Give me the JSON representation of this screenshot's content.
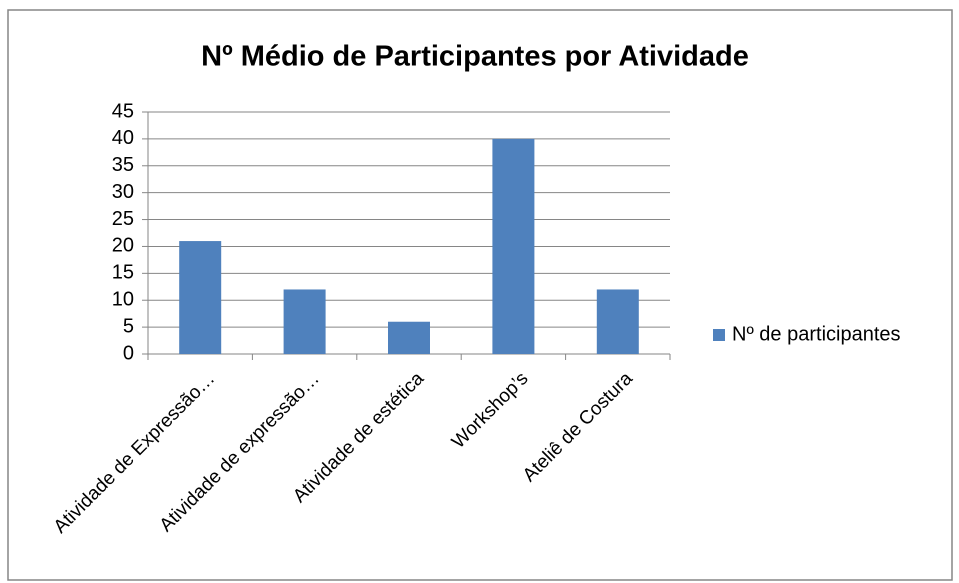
{
  "chart_data": {
    "type": "bar",
    "title": "Nº Médio de Participantes por Atividade",
    "categories": [
      "Atividade de Expressão…",
      "Atividade de expressão…",
      "Atividade de estética",
      "Workshop’s",
      "Ateliê de Costura"
    ],
    "series": [
      {
        "name": "Nº de participantes",
        "color": "#4f81bd",
        "values": [
          21,
          12,
          6,
          40,
          12
        ]
      }
    ],
    "ylim": [
      0,
      45
    ],
    "yticks": [
      0,
      5,
      10,
      15,
      20,
      25,
      30,
      35,
      40,
      45
    ],
    "grid": true,
    "legend": "right"
  }
}
